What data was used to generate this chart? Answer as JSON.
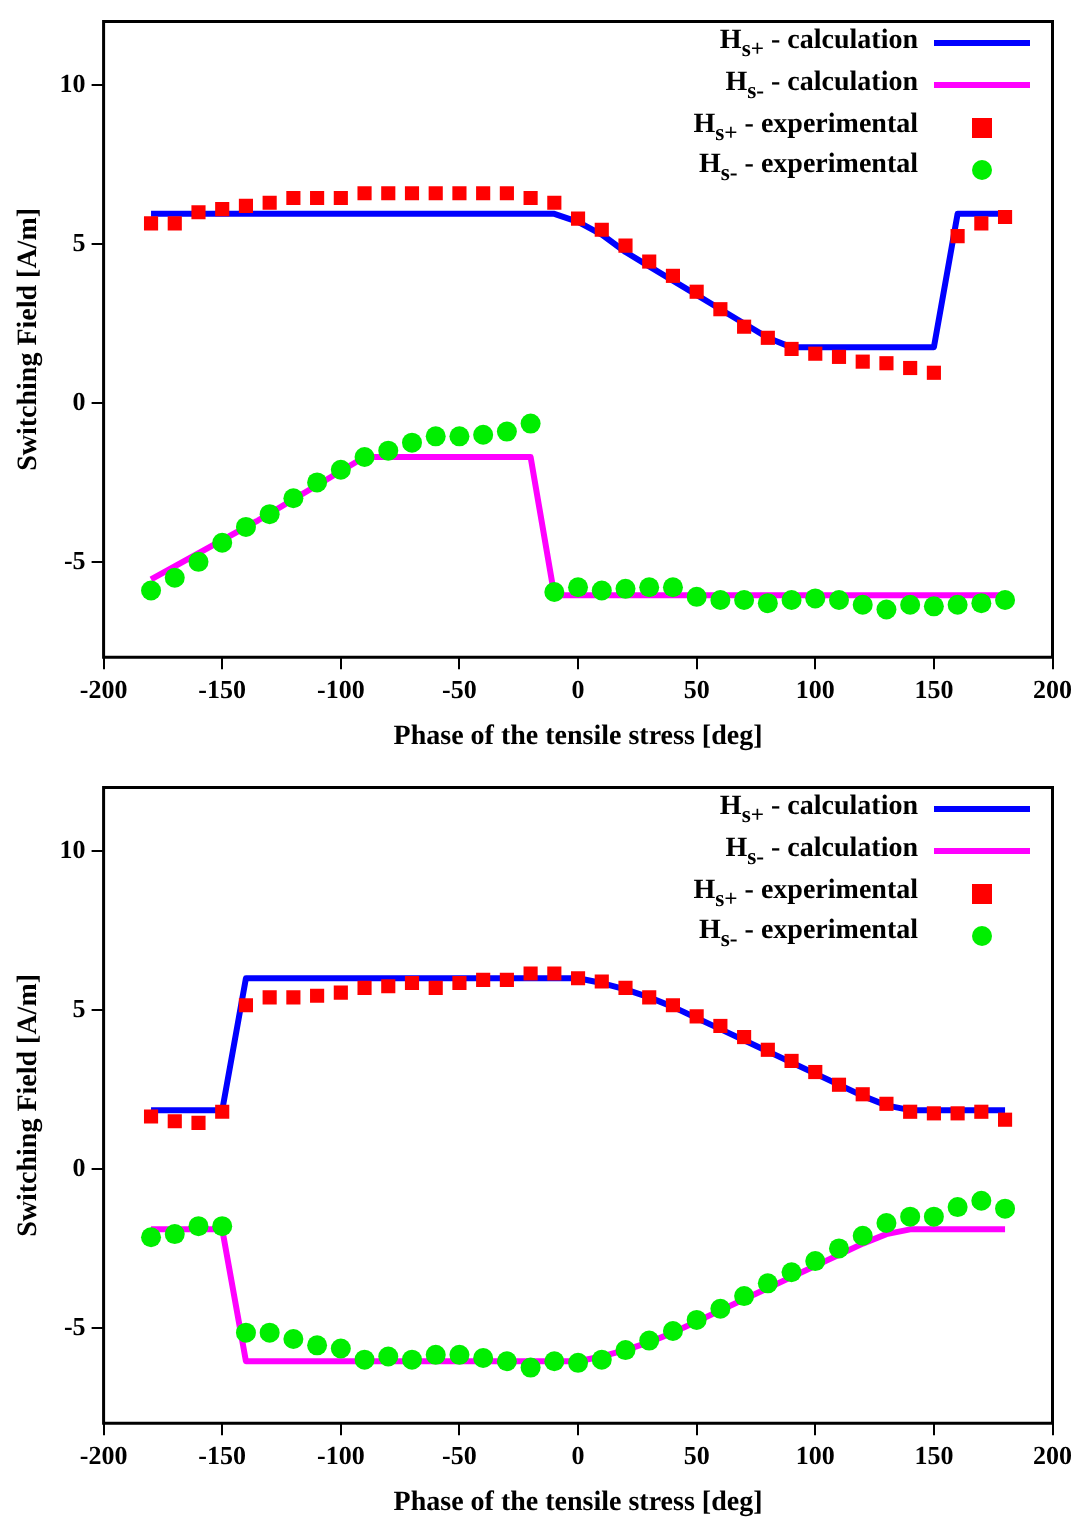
{
  "chart_data": [
    {
      "type": "scatter",
      "xlabel": "Phase of the tensile stress [deg]",
      "ylabel": "Switching Field [A/m]",
      "xlim": [
        -200,
        200
      ],
      "xticks": [
        -200,
        -150,
        -100,
        -50,
        0,
        50,
        100,
        150,
        200
      ],
      "ylim": [
        -8,
        12
      ],
      "yticks": [
        -5,
        0,
        5,
        10
      ],
      "grid": false,
      "legend": "top right",
      "x": [
        -180,
        -170,
        -160,
        -150,
        -140,
        -130,
        -120,
        -110,
        -100,
        -90,
        -80,
        -70,
        -60,
        -50,
        -40,
        -30,
        -20,
        -10,
        0,
        10,
        20,
        30,
        40,
        50,
        60,
        70,
        80,
        90,
        100,
        110,
        120,
        130,
        140,
        150,
        160,
        170,
        180
      ],
      "series": [
        {
          "name": "H$_{s+}$ - calculation",
          "type": "line",
          "color": "#0000ff",
          "marker": "none",
          "x": [
            -180,
            -10,
            0,
            10,
            20,
            30,
            40,
            50,
            60,
            70,
            80,
            90,
            150,
            160,
            180
          ],
          "values": [
            5.95,
            5.95,
            5.7,
            5.3,
            4.75,
            4.3,
            3.85,
            3.4,
            2.95,
            2.5,
            2.05,
            1.75,
            1.75,
            5.95,
            5.95
          ]
        },
        {
          "name": "H$_{s-}$ - calculation",
          "type": "line",
          "color": "#ff00ff",
          "marker": "none",
          "x": [
            -180,
            -135,
            -90,
            -20,
            -10,
            180
          ],
          "values": [
            -5.55,
            -3.7,
            -1.7,
            -1.7,
            -6.05,
            -6.05
          ]
        },
        {
          "name": "H$_{s+}$ - experimental",
          "type": "scatter",
          "color": "#ff0000",
          "marker": "square",
          "values": [
            5.65,
            5.65,
            6.0,
            6.1,
            6.2,
            6.3,
            6.45,
            6.45,
            6.45,
            6.6,
            6.6,
            6.6,
            6.6,
            6.6,
            6.6,
            6.6,
            6.45,
            6.3,
            5.8,
            5.45,
            4.95,
            4.45,
            4.0,
            3.5,
            2.95,
            2.4,
            2.05,
            1.7,
            1.55,
            1.45,
            1.3,
            1.25,
            1.1,
            0.95,
            5.25,
            5.65,
            5.85
          ]
        },
        {
          "name": "H$_{s-}$ - experimental",
          "type": "scatter",
          "color": "#00ee00",
          "marker": "circle",
          "values": [
            -5.9,
            -5.5,
            -5.0,
            -4.4,
            -3.9,
            -3.5,
            -3.0,
            -2.5,
            -2.1,
            -1.7,
            -1.5,
            -1.25,
            -1.05,
            -1.05,
            -1.0,
            -0.9,
            -0.65,
            -5.95,
            -5.8,
            -5.9,
            -5.85,
            -5.8,
            -5.8,
            -6.1,
            -6.2,
            -6.2,
            -6.3,
            -6.2,
            -6.15,
            -6.2,
            -6.35,
            -6.5,
            -6.35,
            -6.4,
            -6.35,
            -6.3,
            -6.2
          ]
        }
      ]
    },
    {
      "type": "scatter",
      "xlabel": "Phase of the tensile stress [deg]",
      "ylabel": "Switching Field [A/m]",
      "xlim": [
        -200,
        200
      ],
      "xticks": [
        -200,
        -150,
        -100,
        -50,
        0,
        50,
        100,
        150,
        200
      ],
      "ylim": [
        -8,
        12
      ],
      "yticks": [
        -5,
        0,
        5,
        10
      ],
      "grid": false,
      "legend": "top right",
      "x": [
        -180,
        -170,
        -160,
        -150,
        -140,
        -130,
        -120,
        -110,
        -100,
        -90,
        -80,
        -70,
        -60,
        -50,
        -40,
        -30,
        -20,
        -10,
        0,
        10,
        20,
        30,
        40,
        50,
        60,
        70,
        80,
        90,
        100,
        110,
        120,
        130,
        140,
        150,
        160,
        170,
        180
      ],
      "series": [
        {
          "name": "H$_{s+}$ - calculation",
          "type": "line",
          "color": "#0000ff",
          "marker": "none",
          "x": [
            -180,
            -150,
            -140,
            0,
            10,
            20,
            30,
            40,
            50,
            60,
            70,
            80,
            90,
            100,
            110,
            120,
            130,
            140,
            180
          ],
          "values": [
            1.85,
            1.85,
            6.0,
            6.0,
            5.85,
            5.65,
            5.4,
            5.1,
            4.75,
            4.4,
            4.05,
            3.7,
            3.35,
            3.0,
            2.65,
            2.3,
            2.0,
            1.85,
            1.85
          ]
        },
        {
          "name": "H$_{s-}$ - calculation",
          "type": "line",
          "color": "#ff00ff",
          "marker": "none",
          "x": [
            -180,
            -150,
            -140,
            0,
            10,
            20,
            30,
            40,
            50,
            60,
            70,
            80,
            90,
            100,
            110,
            120,
            130,
            140,
            180
          ],
          "values": [
            -1.9,
            -1.9,
            -6.05,
            -6.05,
            -5.9,
            -5.7,
            -5.45,
            -5.15,
            -4.8,
            -4.45,
            -4.1,
            -3.75,
            -3.4,
            -3.05,
            -2.7,
            -2.35,
            -2.05,
            -1.9,
            -1.9
          ]
        },
        {
          "name": "H$_{s+}$ - experimental",
          "type": "scatter",
          "color": "#ff0000",
          "marker": "square",
          "values": [
            1.65,
            1.5,
            1.45,
            1.8,
            5.15,
            5.4,
            5.4,
            5.45,
            5.55,
            5.7,
            5.75,
            5.85,
            5.7,
            5.85,
            5.95,
            5.95,
            6.15,
            6.15,
            6.0,
            5.9,
            5.7,
            5.4,
            5.15,
            4.8,
            4.5,
            4.15,
            3.75,
            3.4,
            3.05,
            2.65,
            2.35,
            2.05,
            1.8,
            1.75,
            1.75,
            1.8,
            1.55
          ]
        },
        {
          "name": "H$_{s-}$ - experimental",
          "type": "scatter",
          "color": "#00ee00",
          "marker": "circle",
          "values": [
            -2.15,
            -2.05,
            -1.8,
            -1.8,
            -5.15,
            -5.15,
            -5.35,
            -5.55,
            -5.65,
            -6.0,
            -5.9,
            -6.0,
            -5.85,
            -5.85,
            -5.95,
            -6.05,
            -6.25,
            -6.05,
            -6.1,
            -6.0,
            -5.7,
            -5.4,
            -5.1,
            -4.75,
            -4.4,
            -4.0,
            -3.6,
            -3.25,
            -2.9,
            -2.5,
            -2.1,
            -1.7,
            -1.5,
            -1.5,
            -1.2,
            -1.0,
            -1.25
          ]
        }
      ]
    }
  ]
}
